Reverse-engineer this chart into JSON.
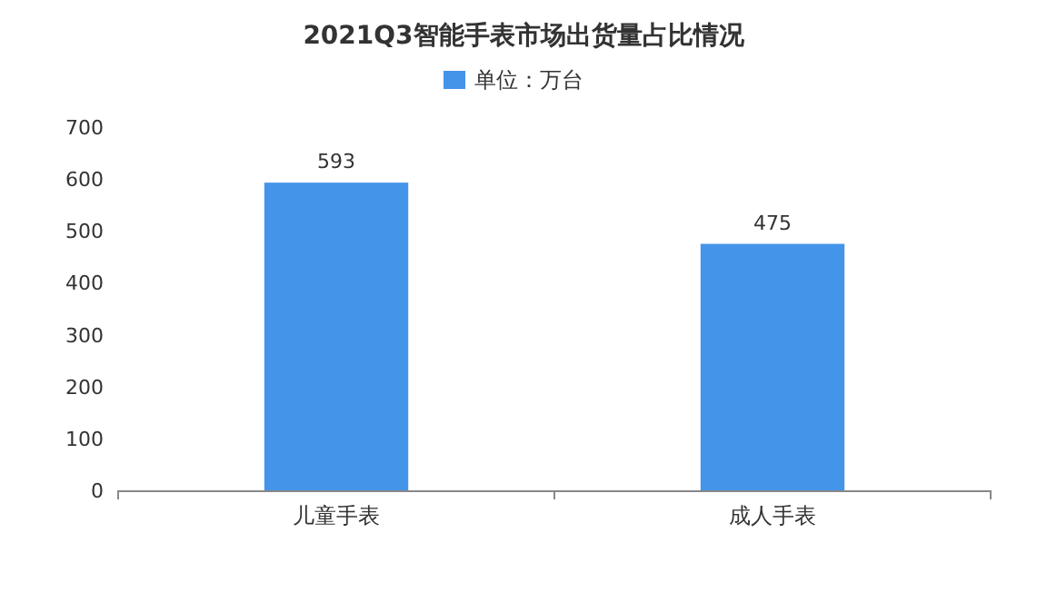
{
  "chart_data": {
    "type": "bar",
    "title": "2021Q3智能手表市场出货量占比情况",
    "categories": [
      "儿童手表",
      "成人手表"
    ],
    "series": [
      {
        "name": "单位：万台",
        "color": "#4494ea",
        "values": [
          593,
          475
        ]
      }
    ],
    "ylim": [
      0,
      700
    ],
    "yticks": [
      0,
      100,
      200,
      300,
      400,
      500,
      600,
      700
    ],
    "data_labels": true,
    "legend": "top"
  }
}
